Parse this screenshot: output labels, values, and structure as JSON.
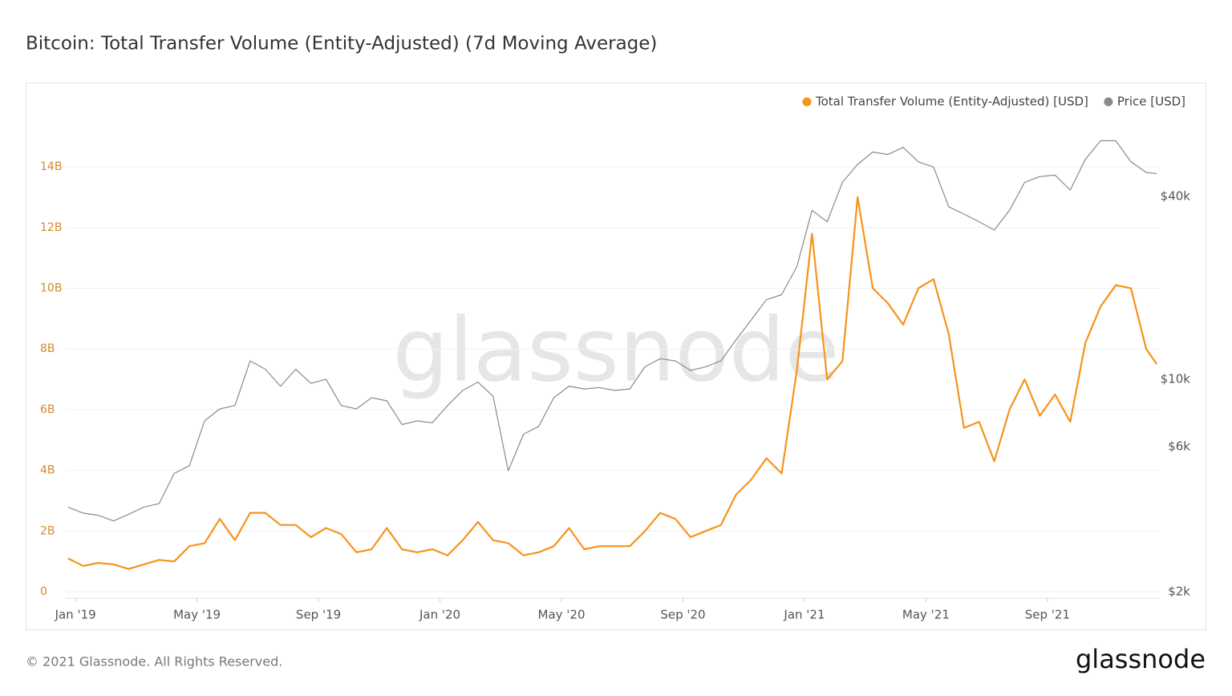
{
  "chart_data": {
    "type": "line",
    "title": "Bitcoin: Total Transfer Volume (Entity-Adjusted) (7d Moving Average)",
    "watermark": "glassnode",
    "x": [
      -0.25,
      0.25,
      0.75,
      1.25,
      1.75,
      2.25,
      2.75,
      3.25,
      3.75,
      4.25,
      4.75,
      5.25,
      5.75,
      6.25,
      6.75,
      7.25,
      7.75,
      8.25,
      8.75,
      9.25,
      9.75,
      10.25,
      10.75,
      11.25,
      11.75,
      12.25,
      12.75,
      13.25,
      13.75,
      14.25,
      14.75,
      15.25,
      15.75,
      16.25,
      16.75,
      17.25,
      17.75,
      18.25,
      18.75,
      19.25,
      19.75,
      20.25,
      20.75,
      21.25,
      21.75,
      22.25,
      22.75,
      23.25,
      23.75,
      24.25,
      24.75,
      25.25,
      25.75,
      26.25,
      26.75,
      27.25,
      27.75,
      28.25,
      28.75,
      29.25,
      29.75,
      30.25,
      30.75,
      31.25,
      31.75,
      32.25,
      32.75,
      33.25,
      33.75,
      34.25,
      34.75,
      35.25,
      35.6
    ],
    "xlim": [
      -0.32,
      35.7
    ],
    "xticks": [
      {
        "value": 0,
        "label": "Jan '19"
      },
      {
        "value": 4,
        "label": "May '19"
      },
      {
        "value": 8,
        "label": "Sep '19"
      },
      {
        "value": 12,
        "label": "Jan '20"
      },
      {
        "value": 16,
        "label": "May '20"
      },
      {
        "value": 20,
        "label": "Sep '20"
      },
      {
        "value": 24,
        "label": "Jan '21"
      },
      {
        "value": 28,
        "label": "May '21"
      },
      {
        "value": 32,
        "label": "Sep '21"
      }
    ],
    "ylim": [
      0,
      15.8
    ],
    "yticks": [
      0,
      {
        "value": 2,
        "label": "2B"
      },
      {
        "value": 4,
        "label": "4B"
      },
      {
        "value": 6,
        "label": "6B"
      },
      {
        "value": 8,
        "label": "8B"
      },
      {
        "value": 10,
        "label": "10B"
      },
      {
        "value": 12,
        "label": "12B"
      },
      {
        "value": 14,
        "label": "14B"
      }
    ],
    "y2lim": [
      2000,
      75700
    ],
    "y2ticks": [
      {
        "value": 2000,
        "label": "$2k"
      },
      {
        "value": 6000,
        "label": "$6k"
      },
      {
        "value": 10000,
        "label": "$10k"
      },
      {
        "value": 40000,
        "label": "$40k"
      }
    ],
    "y2log": true,
    "grid": true,
    "legend": "top-right",
    "series": [
      {
        "name": "Total Transfer Volume (Entity-Adjusted) [USD]",
        "color": "#f7931a",
        "values": [
          1.1,
          0.85,
          0.95,
          0.9,
          0.75,
          0.9,
          1.05,
          1.0,
          1.5,
          1.6,
          2.4,
          1.7,
          2.6,
          2.6,
          2.2,
          2.2,
          1.8,
          2.1,
          1.9,
          1.3,
          1.4,
          2.1,
          1.4,
          1.3,
          1.4,
          1.2,
          1.7,
          2.3,
          1.7,
          1.6,
          1.2,
          1.3,
          1.5,
          2.1,
          1.4,
          1.5,
          1.5,
          1.5,
          2.0,
          2.6,
          2.4,
          1.8,
          2.0,
          2.2,
          3.2,
          3.7,
          4.4,
          3.9,
          7.3,
          11.8,
          7.0,
          7.6,
          13.0,
          10.0,
          9.5,
          8.8,
          10.0,
          10.3,
          8.5,
          5.4,
          5.6,
          4.3,
          6.0,
          7.0,
          5.8,
          6.5,
          5.6,
          8.2,
          9.4,
          10.1,
          10.0,
          8.0,
          7.5
        ]
      },
      {
        "name": "Price [USD]",
        "color": "#8a8a8a",
        "axis": "y2",
        "values": [
          3800,
          3630,
          3570,
          3420,
          3600,
          3800,
          3900,
          4900,
          5200,
          7300,
          8000,
          8200,
          11500,
          10800,
          9500,
          10800,
          9700,
          10000,
          8200,
          8000,
          8700,
          8500,
          7100,
          7300,
          7200,
          8200,
          9200,
          9800,
          8800,
          5000,
          6600,
          7000,
          8700,
          9500,
          9300,
          9400,
          9200,
          9300,
          11000,
          11700,
          11500,
          10700,
          11000,
          11500,
          13500,
          15700,
          18300,
          19000,
          23500,
          36000,
          33000,
          44500,
          51000,
          56000,
          55000,
          58000,
          52000,
          50000,
          37000,
          35000,
          33000,
          31000,
          36000,
          44500,
          46500,
          47000,
          42000,
          53000,
          61000,
          61000,
          52000,
          48000,
          47500
        ]
      }
    ]
  },
  "footer": {
    "copyright": "© 2021 Glassnode. All Rights Reserved.",
    "logo": "glassnode"
  }
}
